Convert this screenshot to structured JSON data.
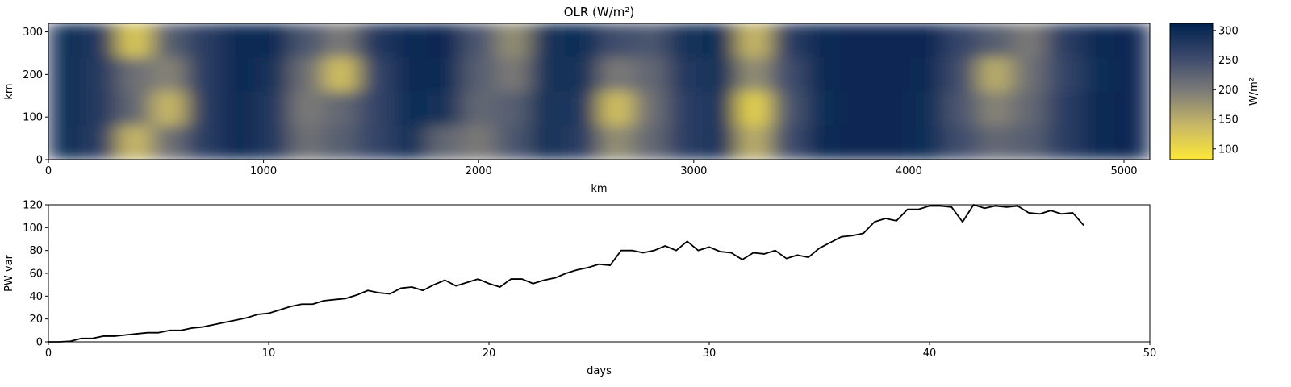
{
  "chart_data": [
    {
      "type": "heatmap",
      "title": "OLR (W/m²)",
      "x_label": "km",
      "y_label": "km",
      "xlim": [
        0,
        5120
      ],
      "xticks": [
        0,
        1000,
        2000,
        3000,
        4000,
        5000
      ],
      "ylim": [
        0,
        320
      ],
      "yticks": [
        0,
        100,
        200,
        300
      ],
      "z": [
        [
          295,
          280,
          120,
          230,
          270,
          300,
          300,
          240,
          200,
          280,
          300,
          305,
          240,
          180,
          290,
          295,
          250,
          240,
          290,
          295,
          140,
          270,
          300,
          305,
          305,
          305,
          260,
          230,
          200,
          270,
          300,
          305
        ],
        [
          295,
          275,
          210,
          190,
          270,
          300,
          290,
          210,
          130,
          260,
          300,
          300,
          230,
          200,
          290,
          290,
          200,
          220,
          280,
          290,
          180,
          250,
          300,
          305,
          305,
          300,
          250,
          150,
          210,
          260,
          295,
          305
        ],
        [
          295,
          275,
          220,
          140,
          270,
          300,
          280,
          200,
          220,
          260,
          295,
          290,
          220,
          230,
          290,
          280,
          130,
          210,
          270,
          285,
          110,
          240,
          295,
          305,
          305,
          295,
          240,
          190,
          220,
          270,
          300,
          305
        ],
        [
          295,
          270,
          140,
          210,
          270,
          300,
          280,
          210,
          230,
          260,
          290,
          220,
          200,
          240,
          290,
          270,
          180,
          220,
          270,
          285,
          150,
          250,
          300,
          305,
          305,
          295,
          250,
          220,
          230,
          270,
          300,
          305
        ]
      ],
      "zlim": [
        82,
        312
      ],
      "colormap": [
        "#fee838",
        "#c8b866",
        "#7d7c78",
        "#3b496c",
        "#00224e"
      ],
      "colorbar_label": "W/m²",
      "colorbar_ticks": [
        100,
        150,
        200,
        250,
        300
      ]
    },
    {
      "type": "line",
      "x_label": "days",
      "y_label": "PW var",
      "xlim": [
        0,
        50
      ],
      "xticks": [
        0,
        10,
        20,
        30,
        40,
        50
      ],
      "ylim": [
        0,
        120
      ],
      "yticks": [
        0,
        20,
        40,
        60,
        80,
        100,
        120
      ],
      "color": "#000000",
      "x": [
        0,
        0.5,
        1,
        1.5,
        2,
        2.5,
        3,
        3.5,
        4,
        4.5,
        5,
        5.5,
        6,
        6.5,
        7,
        7.5,
        8,
        8.5,
        9,
        9.5,
        10,
        10.5,
        11,
        11.5,
        12,
        12.5,
        13,
        13.5,
        14,
        14.5,
        15,
        15.5,
        16,
        16.5,
        17,
        17.5,
        18,
        18.5,
        19,
        19.5,
        20,
        20.5,
        21,
        21.5,
        22,
        22.5,
        23,
        23.5,
        24,
        24.5,
        25,
        25.5,
        26,
        26.5,
        27,
        27.5,
        28,
        28.5,
        29,
        29.5,
        30,
        30.5,
        31,
        31.5,
        32,
        32.5,
        33,
        33.5,
        34,
        34.5,
        35,
        35.5,
        36,
        36.5,
        37,
        37.5,
        38,
        38.5,
        39,
        39.5,
        40,
        40.5,
        41,
        41.5,
        42,
        42.5,
        43,
        43.5,
        44,
        44.5,
        45,
        45.5,
        46,
        46.5,
        47
      ],
      "values": [
        0,
        0,
        0.5,
        3,
        3,
        5,
        5,
        6,
        7,
        8,
        8,
        10,
        10,
        12,
        13,
        15,
        17,
        19,
        21,
        24,
        25,
        28,
        31,
        33,
        33,
        36,
        37,
        38,
        41,
        45,
        43,
        42,
        47,
        48,
        45,
        50,
        54,
        49,
        52,
        55,
        51,
        48,
        55,
        55,
        51,
        54,
        56,
        60,
        63,
        65,
        68,
        67,
        80,
        80,
        78,
        80,
        84,
        80,
        88,
        80,
        83,
        79,
        78,
        72,
        78,
        77,
        80,
        73,
        76,
        74,
        82,
        87,
        92,
        93,
        95,
        105,
        108,
        106,
        116,
        116,
        119,
        119,
        118,
        105,
        120,
        117,
        119,
        118,
        119,
        113,
        112,
        115,
        112,
        113,
        102
      ]
    }
  ]
}
